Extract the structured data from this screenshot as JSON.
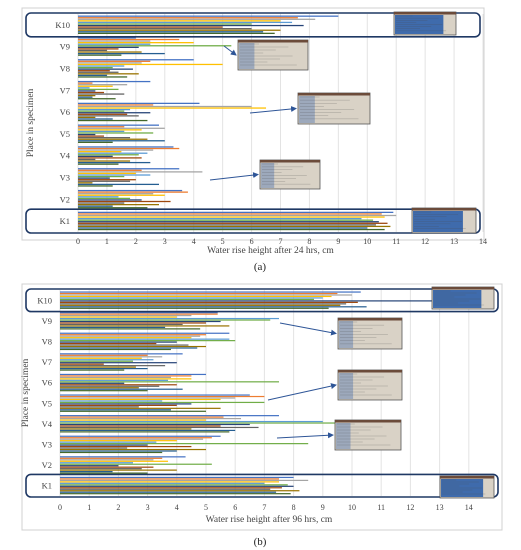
{
  "chart_data": [
    {
      "type": "bar",
      "panel_label": "(a)",
      "xlabel": "Water rise height after 24 hrs, cm",
      "ylabel": "Place in specimen",
      "xlim": [
        0,
        14
      ],
      "xticks": [
        0,
        1,
        2,
        3,
        4,
        5,
        6,
        7,
        8,
        9,
        10,
        11,
        12,
        13,
        14
      ],
      "grid": "vertical",
      "categories": [
        "K1",
        "V2",
        "V3",
        "V4",
        "V5",
        "V6",
        "V7",
        "V8",
        "V9",
        "K10"
      ],
      "highlighted_categories": [
        "K1",
        "K10"
      ],
      "series_colors": [
        "#4472C4",
        "#ED7D31",
        "#A5A5A5",
        "#FFC000",
        "#5B9BD5",
        "#70AD47",
        "#264478",
        "#9E480E",
        "#636363",
        "#997300",
        "#255E91",
        "#43682B"
      ],
      "values": {
        "K1": [
          10.9,
          10.5,
          11.0,
          10.6,
          9.8,
          10.2,
          10.4,
          10.7,
          10.3,
          10.8,
          10.0,
          10.6
        ],
        "V2": [
          3.6,
          3.8,
          2.6,
          3.0,
          1.4,
          1.8,
          2.2,
          3.2,
          1.6,
          2.8,
          1.2,
          2.4
        ],
        "V3": [
          3.5,
          2.2,
          4.3,
          2.0,
          2.5,
          1.6,
          1.1,
          2.0,
          1.8,
          0.5,
          2.8,
          1.2
        ],
        "V4": [
          3.3,
          3.5,
          2.6,
          1.5,
          2.4,
          2.1,
          1.2,
          2.2,
          0.6,
          1.8,
          2.5,
          1.4
        ],
        "V5": [
          2.8,
          1.6,
          3.0,
          2.2,
          1.6,
          2.6,
          0.6,
          0.9,
          1.8,
          2.4,
          3.0,
          1.2
        ],
        "V6": [
          4.2,
          2.6,
          6.0,
          6.5,
          1.8,
          1.6,
          2.5,
          1.7,
          2.1,
          0.6,
          1.2,
          2.4
        ],
        "V7": [
          2.5,
          0.5,
          1.7,
          1.2,
          0.4,
          1.4,
          0.6,
          0.9,
          1.6,
          0.6,
          0.5,
          1.3
        ],
        "V8": [
          4.0,
          2.5,
          2.2,
          5.0,
          1.6,
          1.2,
          1.9,
          1.1,
          1.4,
          2.1,
          1.0,
          1.7
        ],
        "V9": [
          2.0,
          3.5,
          2.5,
          4.0,
          2.5,
          5.3,
          2.1,
          1.4,
          1.0,
          2.2,
          3.0,
          1.5
        ],
        "K10": [
          9.0,
          7.6,
          8.2,
          7.0,
          7.4,
          6.0,
          7.8,
          5.0,
          6.0,
          7.0,
          6.4,
          6.8
        ]
      }
    },
    {
      "type": "bar",
      "panel_label": "(b)",
      "xlabel": "Water rise height after  96 hrs, cm",
      "ylabel": "Place in specimen",
      "xlim": [
        0,
        15
      ],
      "xticks": [
        0,
        1,
        2,
        3,
        4,
        5,
        6,
        7,
        8,
        9,
        10,
        11,
        12,
        13,
        14
      ],
      "grid": "vertical",
      "categories": [
        "K1",
        "V2",
        "V3",
        "V4",
        "V5",
        "V6",
        "V7",
        "V8",
        "V9",
        "K10"
      ],
      "highlighted_categories": [
        "K1",
        "K10"
      ],
      "series_colors": [
        "#4472C4",
        "#ED7D31",
        "#A5A5A5",
        "#FFC000",
        "#5B9BD5",
        "#70AD47",
        "#264478",
        "#9E480E",
        "#636363",
        "#997300",
        "#255E91",
        "#43682B"
      ],
      "values": {
        "K1": [
          8.0,
          7.5,
          8.5,
          7.5,
          7.0,
          7.8,
          8.0,
          7.6,
          7.2,
          8.2,
          7.4,
          7.9
        ],
        "V2": [
          4.3,
          3.5,
          3.2,
          3.7,
          2.5,
          5.2,
          2.0,
          3.2,
          2.8,
          4.0,
          1.8,
          3.0
        ],
        "V3": [
          5.5,
          5.2,
          4.9,
          4.0,
          3.3,
          8.5,
          3.0,
          4.5,
          2.3,
          5.0,
          4.0,
          3.5
        ],
        "V4": [
          7.5,
          5.6,
          6.2,
          5.0,
          9.0,
          9.5,
          6.5,
          5.5,
          6.8,
          4.5,
          6.0,
          5.8
        ],
        "V5": [
          6.5,
          7.0,
          6.0,
          5.5,
          3.5,
          7.0,
          4.5,
          4.0,
          2.7,
          5.5,
          3.8,
          5.0
        ],
        "V6": [
          5.0,
          4.5,
          3.8,
          4.5,
          3.7,
          7.5,
          2.2,
          4.0,
          3.4,
          2.7,
          4.2,
          3.0
        ],
        "V7": [
          4.2,
          3.0,
          3.5,
          2.8,
          3.2,
          2.5,
          4.0,
          1.5,
          3.6,
          2.6,
          3.0,
          2.2
        ],
        "V8": [
          5.8,
          5.0,
          4.8,
          4.5,
          5.8,
          6.0,
          4.0,
          3.3,
          4.4,
          5.0,
          4.7,
          3.8
        ],
        "V9": [
          5.4,
          5.4,
          4.5,
          4.0,
          7.5,
          7.2,
          5.5,
          5.0,
          4.2,
          5.8,
          3.6,
          4.8
        ],
        "K10": [
          10.3,
          9.5,
          10.0,
          9.3,
          9.0,
          8.7,
          13.0,
          10.2,
          9.8,
          9.6,
          10.5,
          9.2
        ]
      }
    }
  ],
  "photo_inset": {
    "wet_color": "#2D5FA8",
    "dry_color": "#D9D2C6",
    "frame_color": "#1F3864",
    "arrow_color": "#2E5597"
  }
}
